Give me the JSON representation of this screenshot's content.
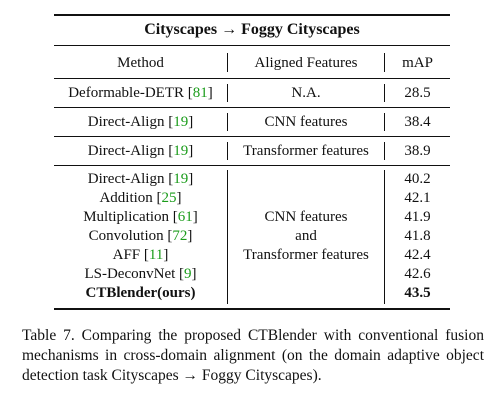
{
  "table": {
    "title": "Cityscapes → Foggy Cityscapes",
    "headers": {
      "method": "Method",
      "features": "Aligned Features",
      "map": "mAP"
    },
    "single_rows": [
      {
        "method": "Deformable-DETR",
        "ref": "81",
        "features": "N.A.",
        "map": "28.5"
      },
      {
        "method": "Direct-Align",
        "ref": "19",
        "features": "CNN features",
        "map": "38.4"
      },
      {
        "method": "Direct-Align",
        "ref": "19",
        "features": "Transformer features",
        "map": "38.9"
      }
    ],
    "group": {
      "features_line1": "CNN features",
      "features_line2": "and",
      "features_line3": "Transformer features",
      "rows": [
        {
          "method": "Direct-Align",
          "ref": "19",
          "map": "40.2"
        },
        {
          "method": "Addition",
          "ref": "25",
          "map": "42.1"
        },
        {
          "method": "Multiplication",
          "ref": "61",
          "map": "41.9"
        },
        {
          "method": "Convolution",
          "ref": "72",
          "map": "41.8"
        },
        {
          "method": "AFF",
          "ref": "11",
          "map": "42.4"
        },
        {
          "method": "LS-DeconvNet",
          "ref": "9",
          "map": "42.6"
        },
        {
          "method": "CTBlender(ours)",
          "ref": "",
          "map": "43.5"
        }
      ]
    }
  },
  "caption": "Table 7. Comparing the proposed CTBlender with conventional fusion mechanisms in cross-domain alignment (on the domain adaptive object detection task Cityscapes → Foggy Cityscapes)."
}
